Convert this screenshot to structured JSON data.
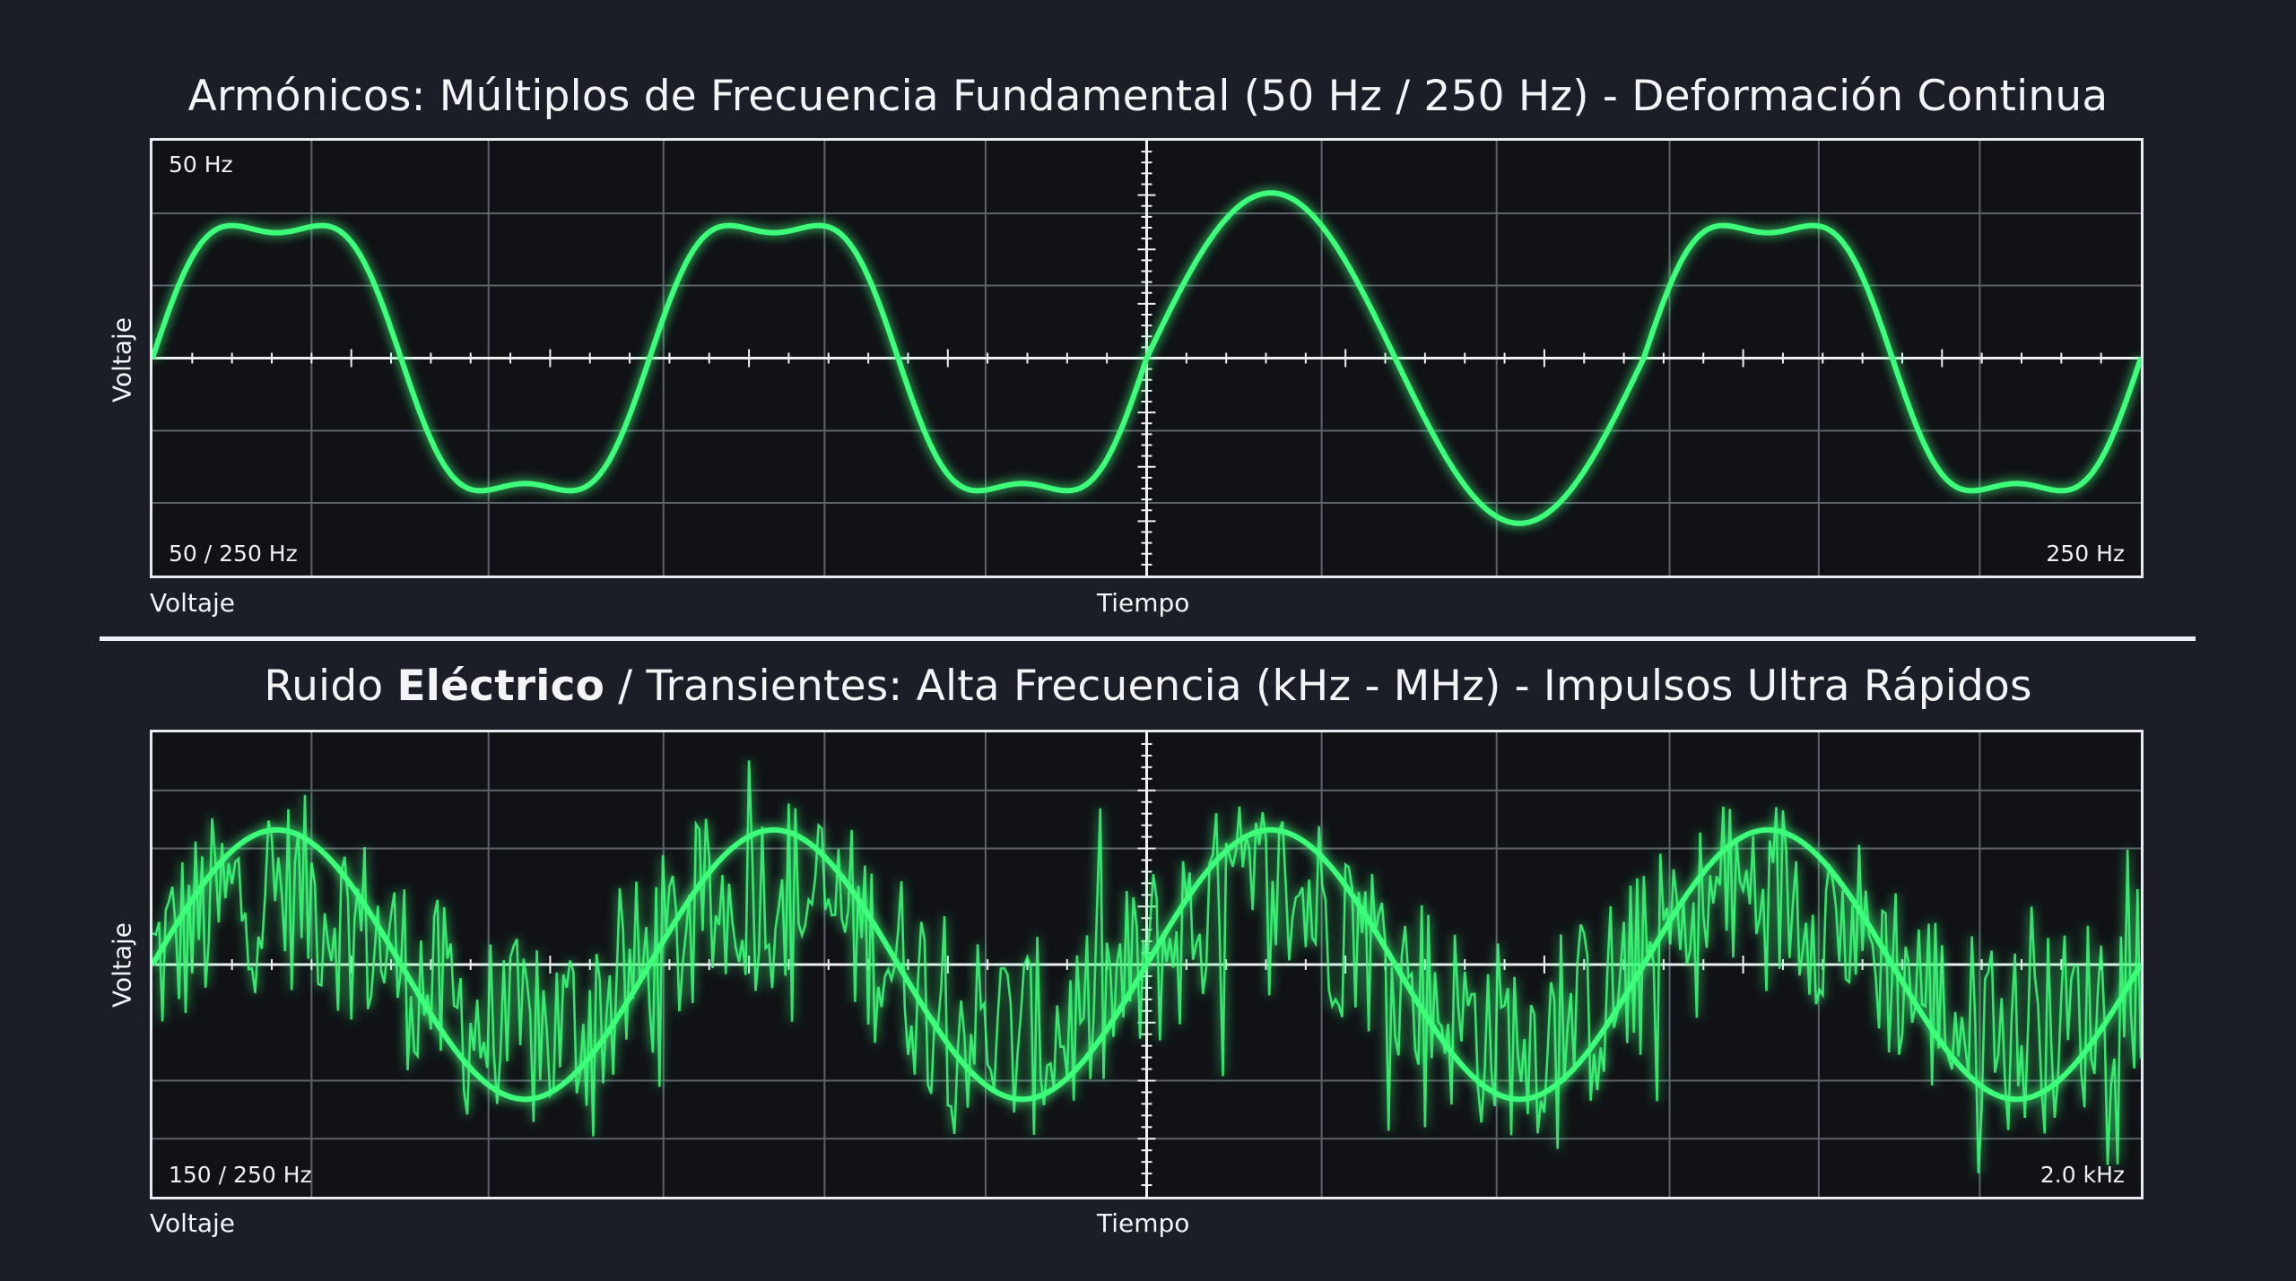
{
  "chart_data": [
    {
      "type": "line",
      "title_text": "Armónicos: Múltiplos de Frecuencia Fundamental (50 Hz / 250 Hz) - Deformación Continua",
      "xlabel": "Tiempo",
      "ylabel": "Voltaje",
      "ylabel_bottom": "Voltaje",
      "corner_top_left": "50 Hz",
      "corner_bottom_left": "50 / 250 Hz",
      "corner_bottom_right": "250 Hz",
      "grid": true,
      "line_color": "#3dff7a",
      "series": [
        {
          "cycles": [
            {
              "fundamental": 1,
              "harmonics": [
                {
                  "order": 3,
                  "amplitude": 0.18
                }
              ]
            },
            {
              "fundamental": 1,
              "harmonics": [
                {
                  "order": 3,
                  "amplitude": 0.18
                }
              ]
            },
            {
              "fundamental": 1,
              "harmonics": []
            },
            {
              "fundamental": 1,
              "harmonics": [
                {
                  "order": 3,
                  "amplitude": 0.18
                }
              ]
            }
          ]
        }
      ]
    },
    {
      "type": "line",
      "title_prefix": "Ruido ",
      "title_bold": "Eléctrico",
      "title_suffix": " / Transientes: Alta Frecuencia (kHz - MHz) - Impulsos Ultra Rápidos",
      "xlabel": "Tiempo",
      "ylabel": "Voltaje",
      "ylabel_bottom": "Voltaje",
      "corner_bottom_left": "150 / 250 Hz",
      "corner_bottom_right": "2.0 kHz",
      "grid": true,
      "line_color": "#3dff7a",
      "series": [
        {
          "kind": "sine",
          "cycles": 4,
          "amplitude": 1.0
        },
        {
          "kind": "noise",
          "samples": 600,
          "amplitude": 1.3
        }
      ]
    }
  ]
}
